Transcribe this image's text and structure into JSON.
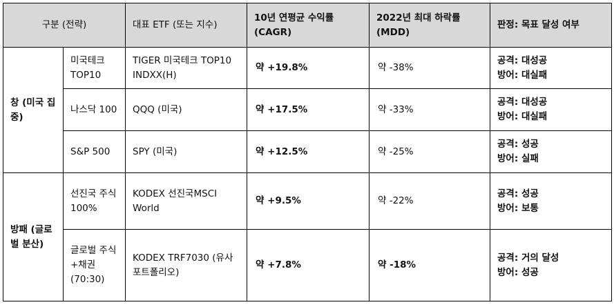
{
  "headers": {
    "category": "구분 (전략)",
    "etf": "대표 ETF (또는 지수)",
    "cagr": "10년 연평균 수익률 (CAGR)",
    "mdd": "2022년 최대 하락률 (MDD)",
    "verdict": "판정: 목표 달성 여부"
  },
  "groups": [
    {
      "name": "창 (미국 집중)",
      "rows": [
        {
          "sub": "미국테크 TOP10",
          "etf": "TIGER 미국테크 TOP10 INDXX(H)",
          "cagr": "약 +19.8%",
          "mdd": "약 -38%",
          "attack": "공격: 대성공",
          "defense": "방어: 대실패"
        },
        {
          "sub": "나스닥 100",
          "etf": "QQQ (미국)",
          "cagr": "약 +17.5%",
          "mdd": "약 -33%",
          "attack": "공격: 대성공",
          "defense": "방어: 대실패"
        },
        {
          "sub": "S&P 500",
          "etf": "SPY (미국)",
          "cagr": "약 +12.5%",
          "mdd": "약 -25%",
          "attack": "공격: 성공",
          "defense": "방어: 실패"
        }
      ]
    },
    {
      "name": "방패 (글로벌 분산)",
      "rows": [
        {
          "sub": "선진국 주식 100%",
          "etf": "KODEX 선진국MSCI World",
          "cagr": "약 +9.5%",
          "mdd": "약 -22%",
          "attack": "공격: 성공",
          "defense": "방어: 보통"
        },
        {
          "sub": "글로벌 주식+채권 (70:30)",
          "etf": "KODEX TRF7030 (유사 포트폴리오)",
          "cagr": "약 +7.8%",
          "mdd": "약 -18%",
          "attack": "공격: 거의 달성",
          "defense": "방어: 성공"
        }
      ]
    }
  ]
}
